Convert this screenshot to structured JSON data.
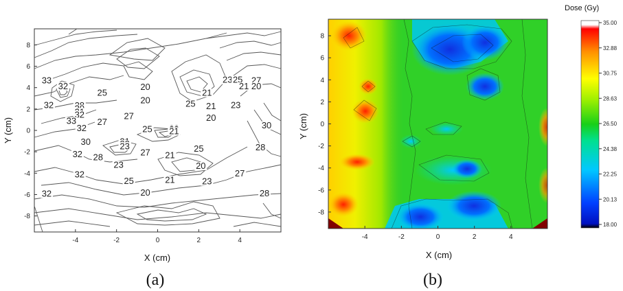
{
  "chart_data": [
    {
      "type": "contour",
      "panel_label": "(a)",
      "xlabel": "X (cm)",
      "ylabel": "Y (cm)",
      "xlim": [
        -6,
        6
      ],
      "ylim": [
        -9.5,
        9.5
      ],
      "xticks": [
        "-4",
        "-2",
        "0",
        "2",
        "4"
      ],
      "yticks": [
        "8",
        "6",
        "4",
        "2",
        "0",
        "-2",
        "-4",
        "-6",
        "-8"
      ],
      "contour_labels": [
        {
          "text": "33",
          "x": -5.4,
          "y": 8.8
        },
        {
          "text": "32",
          "x": -4.6,
          "y": 7.7
        },
        {
          "text": "25",
          "x": -2.7,
          "y": 6.5
        },
        {
          "text": "20",
          "x": -0.6,
          "y": 7.6
        },
        {
          "text": "20",
          "x": -0.6,
          "y": 5.1
        },
        {
          "text": "23",
          "x": 3.4,
          "y": 8.9
        },
        {
          "text": "25",
          "x": 3.9,
          "y": 8.9
        },
        {
          "text": "27",
          "x": 4.8,
          "y": 8.8
        },
        {
          "text": "21",
          "x": 4.2,
          "y": 7.7
        },
        {
          "text": "20",
          "x": 4.8,
          "y": 7.7
        },
        {
          "text": "21",
          "x": 2.4,
          "y": 6.5
        },
        {
          "text": "25",
          "x": 1.6,
          "y": 4.4
        },
        {
          "text": "21",
          "x": 2.6,
          "y": 4.0
        },
        {
          "text": "23",
          "x": 3.8,
          "y": 4.2
        },
        {
          "text": "20",
          "x": 2.6,
          "y": 1.8
        },
        {
          "text": "32",
          "x": -5.3,
          "y": 4.2
        },
        {
          "text": "28",
          "x": -3.8,
          "y": 4.1
        },
        {
          "text": "30",
          "x": -3.8,
          "y": 3.5
        },
        {
          "text": "31",
          "x": -3.8,
          "y": 2.9
        },
        {
          "text": "32",
          "x": -3.8,
          "y": 2.4
        },
        {
          "text": "27",
          "x": -1.4,
          "y": 2.1
        },
        {
          "text": "33",
          "x": -4.2,
          "y": 1.2
        },
        {
          "text": "27",
          "x": -2.7,
          "y": 1.0
        },
        {
          "text": "32",
          "x": -3.7,
          "y": -0.1
        },
        {
          "text": "25",
          "x": -0.5,
          "y": -0.3
        },
        {
          "text": "22",
          "x": 0.8,
          "y": -0.2
        },
        {
          "text": "23",
          "x": 0.8,
          "y": -0.4
        },
        {
          "text": "21",
          "x": 0.8,
          "y": -0.7
        },
        {
          "text": "30",
          "x": 5.3,
          "y": 0.4
        },
        {
          "text": "30",
          "x": -3.5,
          "y": -2.7
        },
        {
          "text": "21",
          "x": -1.6,
          "y": -2.6
        },
        {
          "text": "22",
          "x": -1.6,
          "y": -3.1
        },
        {
          "text": "23",
          "x": -1.6,
          "y": -3.5
        },
        {
          "text": "28",
          "x": 5.0,
          "y": -3.7
        },
        {
          "text": "27",
          "x": -0.6,
          "y": -4.7
        },
        {
          "text": "25",
          "x": 2.0,
          "y": -4.0
        },
        {
          "text": "32",
          "x": -3.9,
          "y": -5.0
        },
        {
          "text": "28",
          "x": -2.9,
          "y": -5.6
        },
        {
          "text": "21",
          "x": 0.6,
          "y": -5.2
        },
        {
          "text": "23",
          "x": -1.9,
          "y": -7.0
        },
        {
          "text": "20",
          "x": 2.1,
          "y": -7.2
        },
        {
          "text": "32",
          "x": -3.8,
          "y": -8.8
        },
        {
          "text": "27",
          "x": 4.0,
          "y": -8.6
        },
        {
          "text": "25",
          "x": -1.4,
          "y": -10.0
        },
        {
          "text": "21",
          "x": 0.6,
          "y": -9.8
        },
        {
          "text": "23",
          "x": 2.4,
          "y": -10.1
        },
        {
          "text": "32",
          "x": -5.4,
          "y": -12.4
        },
        {
          "text": "20",
          "x": -0.6,
          "y": -12.2
        },
        {
          "text": "28",
          "x": 5.2,
          "y": -12.3
        }
      ]
    },
    {
      "type": "heatmap",
      "panel_label": "(b)",
      "xlabel": "X (cm)",
      "ylabel": "Y (cm)",
      "xlim": [
        -6,
        6
      ],
      "ylim": [
        -9.5,
        9.5
      ],
      "xticks": [
        "-4",
        "-2",
        "0",
        "2",
        "4"
      ],
      "yticks": [
        "8",
        "6",
        "4",
        "2",
        "0",
        "-2",
        "-4",
        "-6",
        "-8"
      ],
      "colorbar": {
        "title": "Dose (Gy)",
        "ticks": [
          "35.00",
          "32.88",
          "30.75",
          "28.63",
          "26.50",
          "24.38",
          "22.25",
          "20.13",
          "18.00"
        ],
        "range": [
          18,
          35
        ],
        "colors": [
          "#000000",
          "#0000ff",
          "#00c8ff",
          "#00e090",
          "#20d020",
          "#c0ff00",
          "#ffff00",
          "#ff9000",
          "#ff0000",
          "#ffffff"
        ]
      }
    }
  ]
}
